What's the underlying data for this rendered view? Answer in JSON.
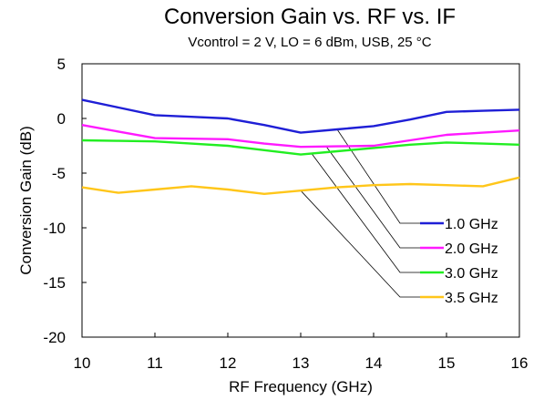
{
  "chart_data": {
    "type": "line",
    "title": "Conversion Gain vs. RF vs. IF",
    "subtitle": "Vcontrol = 2 V, LO = 6 dBm, USB, 25 °C",
    "xlabel": "RF Frequency (GHz)",
    "ylabel": "Conversion Gain (dB)",
    "xlim": [
      10,
      16
    ],
    "ylim": [
      -20,
      5
    ],
    "xticks": [
      "10",
      "11",
      "12",
      "13",
      "14",
      "15",
      "16"
    ],
    "yticks": [
      "5",
      "0",
      "-5",
      "-10",
      "-15",
      "-20"
    ],
    "grid": false,
    "legend_placement": "right, with leader lines",
    "series": [
      {
        "name": "1.0 GHz",
        "color": "#1f1fd6",
        "x": [
          10,
          10.5,
          11,
          11.5,
          12,
          12.5,
          13,
          13.5,
          14,
          14.5,
          15,
          15.5,
          16
        ],
        "y": [
          1.7,
          1.0,
          0.3,
          0.15,
          0.0,
          -0.6,
          -1.3,
          -1.0,
          -0.7,
          -0.1,
          0.6,
          0.7,
          0.8
        ]
      },
      {
        "name": "2.0 GHz",
        "color": "#ff1aff",
        "x": [
          10,
          10.5,
          11,
          11.5,
          12,
          12.5,
          13,
          13.5,
          14,
          14.5,
          15,
          15.5,
          16
        ],
        "y": [
          -0.6,
          -1.2,
          -1.8,
          -1.85,
          -1.9,
          -2.3,
          -2.6,
          -2.55,
          -2.5,
          -2.0,
          -1.5,
          -1.3,
          -1.1
        ]
      },
      {
        "name": "3.0 GHz",
        "color": "#22ee22",
        "x": [
          10,
          10.5,
          11,
          11.5,
          12,
          12.5,
          13,
          13.5,
          14,
          14.5,
          15,
          15.5,
          16
        ],
        "y": [
          -2.0,
          -2.05,
          -2.1,
          -2.3,
          -2.5,
          -2.9,
          -3.3,
          -3.0,
          -2.7,
          -2.4,
          -2.2,
          -2.3,
          -2.4
        ]
      },
      {
        "name": "3.5 GHz",
        "color": "#ffc61a",
        "x": [
          10,
          10.5,
          11,
          11.5,
          12,
          12.5,
          13,
          13.5,
          14,
          14.5,
          15,
          15.5,
          16
        ],
        "y": [
          -6.3,
          -6.8,
          -6.5,
          -6.2,
          -6.5,
          -6.9,
          -6.6,
          -6.3,
          -6.1,
          -6.0,
          -6.1,
          -6.2,
          -5.4
        ]
      }
    ]
  }
}
